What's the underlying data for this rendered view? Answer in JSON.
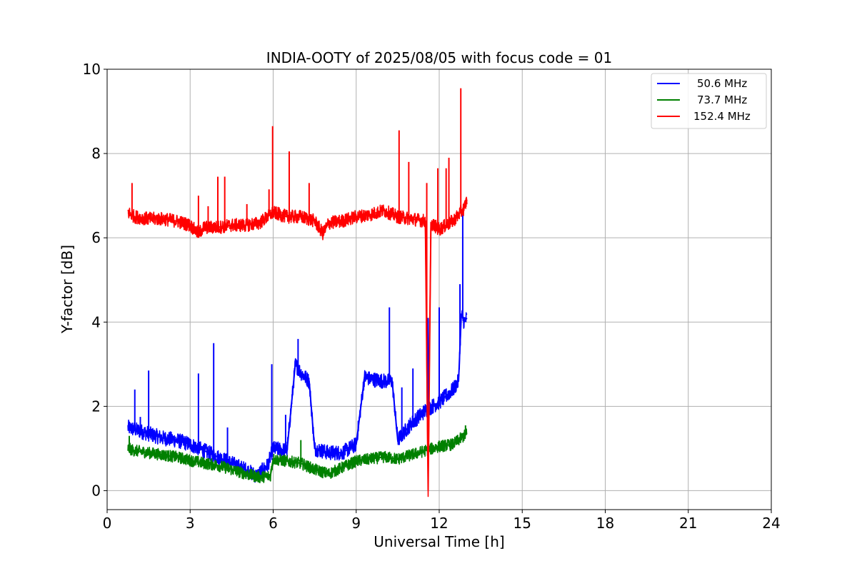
{
  "chart_data": {
    "type": "line",
    "title": "INDIA-OOTY of 2025/08/05 with focus code = 01",
    "xlabel": "Universal Time [h]",
    "ylabel": "Y-factor [dB]",
    "xlim": [
      0,
      24
    ],
    "ylim": [
      -0.45,
      10
    ],
    "xticks": [
      "0",
      "3",
      "6",
      "9",
      "12",
      "15",
      "18",
      "21",
      "24"
    ],
    "yticks": [
      "0",
      "2",
      "4",
      "6",
      "8",
      "10"
    ],
    "grid": true,
    "legend_position": "top-right",
    "series": [
      {
        "name": "50.6 MHz",
        "color": "#0000ff",
        "x": [
          0.75,
          1.0,
          1.5,
          2.0,
          2.5,
          3.0,
          3.5,
          4.0,
          4.5,
          5.0,
          5.4,
          5.8,
          6.0,
          6.5,
          6.8,
          7.0,
          7.3,
          7.5,
          8.0,
          8.5,
          9.0,
          9.3,
          9.5,
          10.0,
          10.3,
          10.5,
          11.0,
          11.5,
          12.0,
          12.5,
          12.7,
          12.8,
          12.9,
          13.0
        ],
        "y": [
          1.5,
          1.45,
          1.35,
          1.25,
          1.2,
          1.1,
          0.95,
          0.8,
          0.65,
          0.5,
          0.35,
          0.6,
          1.0,
          0.95,
          3.0,
          2.8,
          2.6,
          1.0,
          0.9,
          0.9,
          1.1,
          2.7,
          2.65,
          2.6,
          2.6,
          1.2,
          1.6,
          1.9,
          2.1,
          2.4,
          2.6,
          4.2,
          4.0,
          4.1
        ]
      },
      {
        "name": "73.7 MHz",
        "color": "#008000",
        "x": [
          0.75,
          1.0,
          1.5,
          2.0,
          2.5,
          3.0,
          3.5,
          4.0,
          4.5,
          5.0,
          5.5,
          5.9,
          6.0,
          6.5,
          7.0,
          7.5,
          8.0,
          8.5,
          9.0,
          9.5,
          10.0,
          10.5,
          11.0,
          11.5,
          12.0,
          12.5,
          13.0
        ],
        "y": [
          1.0,
          0.95,
          0.9,
          0.85,
          0.8,
          0.72,
          0.65,
          0.6,
          0.5,
          0.4,
          0.32,
          0.35,
          0.75,
          0.7,
          0.65,
          0.5,
          0.4,
          0.55,
          0.7,
          0.75,
          0.8,
          0.75,
          0.85,
          0.95,
          1.05,
          1.1,
          1.35
        ]
      },
      {
        "name": "152.4 MHz",
        "color": "#ff0000",
        "x": [
          0.75,
          1.0,
          1.5,
          2.0,
          2.5,
          3.0,
          3.3,
          3.5,
          4.0,
          4.5,
          5.0,
          5.5,
          6.0,
          6.5,
          7.0,
          7.5,
          7.8,
          8.0,
          8.5,
          9.0,
          9.5,
          10.0,
          10.5,
          11.0,
          11.5,
          11.6,
          11.7,
          12.0,
          12.5,
          12.9,
          13.0
        ],
        "y": [
          6.6,
          6.5,
          6.45,
          6.45,
          6.4,
          6.3,
          6.1,
          6.25,
          6.25,
          6.3,
          6.3,
          6.35,
          6.6,
          6.5,
          6.5,
          6.4,
          6.1,
          6.35,
          6.4,
          6.5,
          6.55,
          6.65,
          6.5,
          6.45,
          6.4,
          0.0,
          6.35,
          6.2,
          6.4,
          6.7,
          6.9
        ]
      }
    ],
    "spikes": [
      {
        "series": 0,
        "x": 1.0,
        "y": 2.4
      },
      {
        "series": 0,
        "x": 1.2,
        "y": 1.75
      },
      {
        "series": 0,
        "x": 1.5,
        "y": 2.85
      },
      {
        "series": 0,
        "x": 3.3,
        "y": 2.78
      },
      {
        "series": 0,
        "x": 3.85,
        "y": 3.5
      },
      {
        "series": 0,
        "x": 4.35,
        "y": 1.5
      },
      {
        "series": 0,
        "x": 5.95,
        "y": 3.0
      },
      {
        "series": 0,
        "x": 6.45,
        "y": 1.8
      },
      {
        "series": 0,
        "x": 6.9,
        "y": 3.6
      },
      {
        "series": 0,
        "x": 10.2,
        "y": 4.35
      },
      {
        "series": 0,
        "x": 10.65,
        "y": 2.45
      },
      {
        "series": 0,
        "x": 11.05,
        "y": 2.9
      },
      {
        "series": 0,
        "x": 11.6,
        "y": 4.1
      },
      {
        "series": 0,
        "x": 12.0,
        "y": 4.35
      },
      {
        "series": 0,
        "x": 12.75,
        "y": 4.9
      },
      {
        "series": 0,
        "x": 12.85,
        "y": 6.6
      },
      {
        "series": 1,
        "x": 0.8,
        "y": 1.3
      },
      {
        "series": 1,
        "x": 7.0,
        "y": 1.2
      },
      {
        "series": 1,
        "x": 12.95,
        "y": 1.55
      },
      {
        "series": 2,
        "x": 0.9,
        "y": 7.3
      },
      {
        "series": 2,
        "x": 3.3,
        "y": 7.0
      },
      {
        "series": 2,
        "x": 3.65,
        "y": 6.75
      },
      {
        "series": 2,
        "x": 4.0,
        "y": 7.45
      },
      {
        "series": 2,
        "x": 4.25,
        "y": 7.45
      },
      {
        "series": 2,
        "x": 5.05,
        "y": 6.8
      },
      {
        "series": 2,
        "x": 5.85,
        "y": 7.15
      },
      {
        "series": 2,
        "x": 5.98,
        "y": 8.65
      },
      {
        "series": 2,
        "x": 6.58,
        "y": 8.05
      },
      {
        "series": 2,
        "x": 7.3,
        "y": 7.3
      },
      {
        "series": 2,
        "x": 10.55,
        "y": 8.55
      },
      {
        "series": 2,
        "x": 10.9,
        "y": 7.8
      },
      {
        "series": 2,
        "x": 11.55,
        "y": 7.3
      },
      {
        "series": 2,
        "x": 11.95,
        "y": 7.65
      },
      {
        "series": 2,
        "x": 12.25,
        "y": 7.65
      },
      {
        "series": 2,
        "x": 12.35,
        "y": 7.9
      },
      {
        "series": 2,
        "x": 12.78,
        "y": 9.55
      }
    ]
  }
}
